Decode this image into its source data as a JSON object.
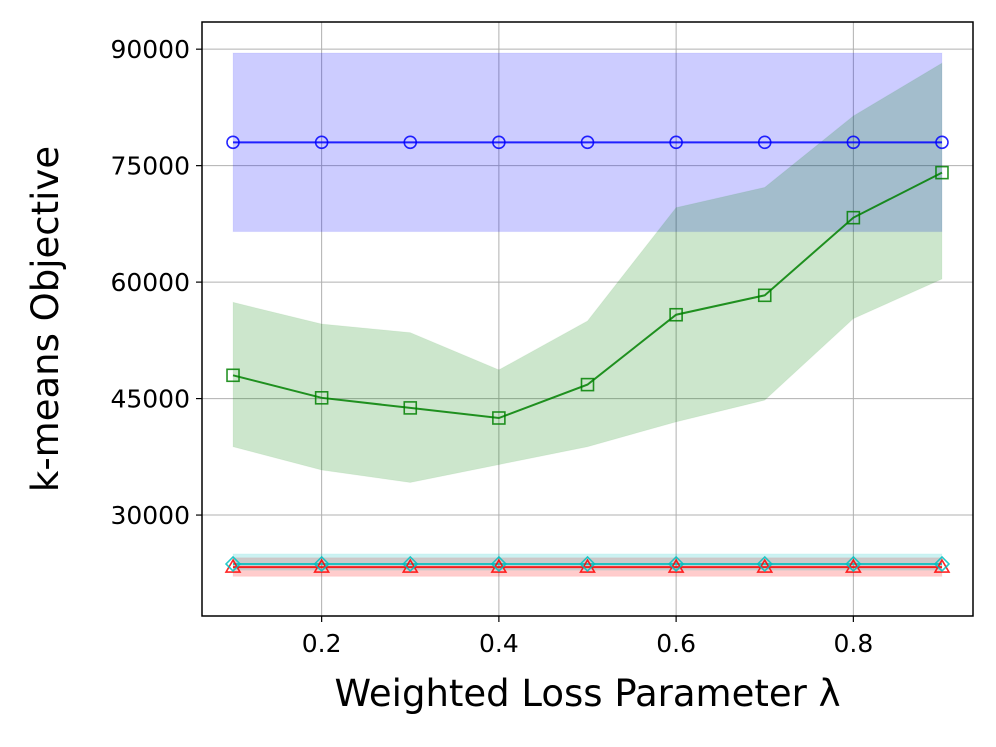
{
  "chart_data": {
    "type": "line",
    "xlabel": "Weighted Loss Parameter λ",
    "ylabel": "k-means Objective",
    "xlim": [
      0.065,
      0.935
    ],
    "ylim": [
      17000,
      93500
    ],
    "xticks": [
      0.2,
      0.4,
      0.6,
      0.8
    ],
    "xtick_labels": [
      "0.2",
      "0.4",
      "0.6",
      "0.8"
    ],
    "yticks": [
      30000,
      45000,
      60000,
      75000,
      90000
    ],
    "ytick_labels": [
      "30000",
      "45000",
      "60000",
      "75000",
      "90000"
    ],
    "grid": true,
    "x": [
      0.1,
      0.2,
      0.3,
      0.4,
      0.5,
      0.6,
      0.7,
      0.8,
      0.9
    ],
    "series": [
      {
        "color": "#0000ff",
        "marker": "circle",
        "values": [
          78000,
          78000,
          78000,
          78000,
          78000,
          78000,
          78000,
          78000,
          78000
        ],
        "band_lower": [
          66500,
          66500,
          66500,
          66500,
          66500,
          66500,
          66500,
          66500,
          66500
        ],
        "band_upper": [
          89500,
          89500,
          89500,
          89500,
          89500,
          89500,
          89500,
          89500,
          89500
        ]
      },
      {
        "color": "#008000",
        "marker": "square",
        "values": [
          48000,
          45100,
          43800,
          42500,
          46800,
          55800,
          58300,
          68300,
          74100
        ],
        "band_lower": [
          38800,
          35800,
          34200,
          36500,
          38800,
          42000,
          44800,
          55300,
          60400
        ],
        "band_upper": [
          57400,
          54600,
          53500,
          48700,
          55000,
          69600,
          72200,
          81400,
          88200
        ]
      },
      {
        "color": "#ff0000",
        "marker": "triangle",
        "values": [
          23300,
          23300,
          23300,
          23300,
          23300,
          23300,
          23300,
          23300,
          23300
        ],
        "band_lower": [
          22100,
          22100,
          22100,
          22100,
          22100,
          22100,
          22100,
          22100,
          22100
        ],
        "band_upper": [
          24500,
          24500,
          24500,
          24500,
          24500,
          24500,
          24500,
          24500,
          24500
        ]
      },
      {
        "color": "#00bfbf",
        "marker": "diamond",
        "values": [
          23700,
          23700,
          23700,
          23700,
          23700,
          23700,
          23700,
          23700,
          23700
        ],
        "band_lower": [
          22900,
          22900,
          22900,
          22900,
          22900,
          22900,
          22900,
          22900,
          22900
        ],
        "band_upper": [
          25000,
          25000,
          25000,
          25000,
          25000,
          25000,
          25000,
          25000,
          25000
        ]
      }
    ]
  }
}
